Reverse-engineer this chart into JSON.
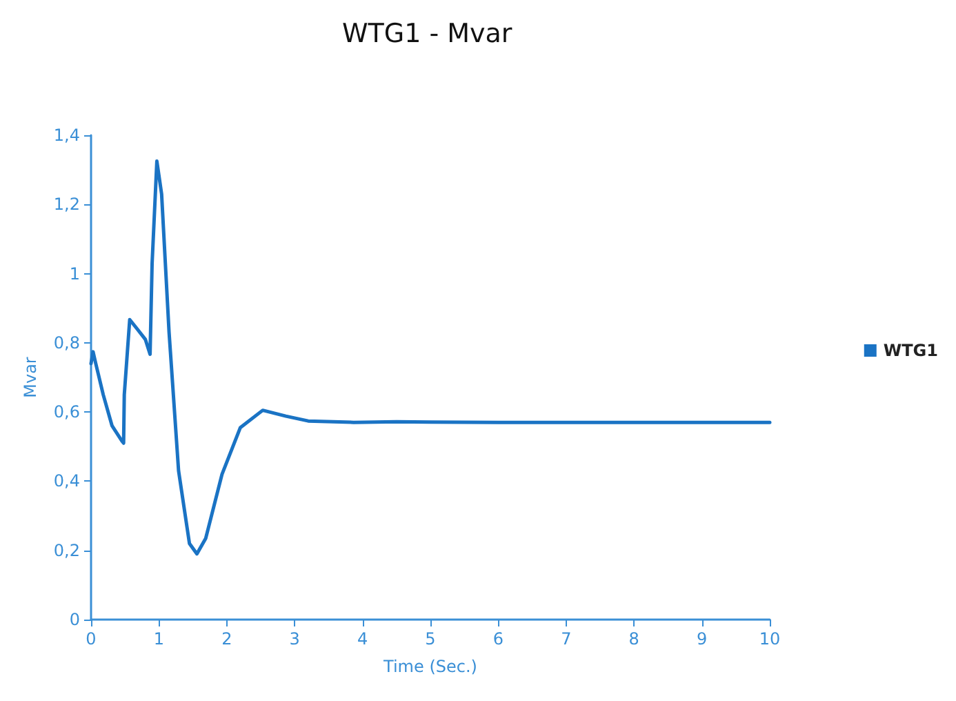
{
  "chart_data": {
    "type": "line",
    "title": "WTG1 - Mvar",
    "xlabel": "Time (Sec.)",
    "ylabel": "Mvar",
    "xlim": [
      0,
      10
    ],
    "xticks": [
      0,
      1,
      2,
      3,
      4,
      5,
      6,
      7,
      8,
      9,
      10
    ],
    "ylim": [
      0,
      1.4
    ],
    "yticks": [
      0,
      {
        "value": 0.2,
        "label": "0,2"
      },
      {
        "value": 0.4,
        "label": "0,4"
      },
      {
        "value": 0.6,
        "label": "0,6"
      },
      {
        "value": 0.8,
        "label": "0,8"
      },
      1,
      {
        "value": 1.2,
        "label": "1,2"
      },
      {
        "value": 1.4,
        "label": "1,4"
      }
    ],
    "grid": false,
    "legend": "right",
    "marker": "none",
    "line_style": "solid",
    "series": [
      {
        "name": "WTG1",
        "color": "#1a73c4",
        "x": [
          0,
          0.03,
          0.07,
          0.18,
          0.31,
          0.46,
          0.48,
          0.49,
          0.57,
          0.68,
          0.8,
          0.87,
          0.9,
          0.97,
          1.04,
          1.15,
          1.29,
          1.45,
          1.56,
          1.69,
          1.93,
          2.2,
          2.53,
          2.87,
          3.2,
          3.87,
          4.5,
          5,
          6,
          7,
          8,
          9,
          10
        ],
        "values": [
          0.74,
          0.774,
          0.74,
          0.65,
          0.56,
          0.515,
          0.51,
          0.65,
          0.867,
          0.84,
          0.81,
          0.767,
          1.03,
          1.325,
          1.23,
          0.83,
          0.43,
          0.22,
          0.19,
          0.235,
          0.42,
          0.555,
          0.605,
          0.588,
          0.574,
          0.57,
          0.572,
          0.571,
          0.57,
          0.57,
          0.57,
          0.57,
          0.57
        ]
      }
    ]
  }
}
